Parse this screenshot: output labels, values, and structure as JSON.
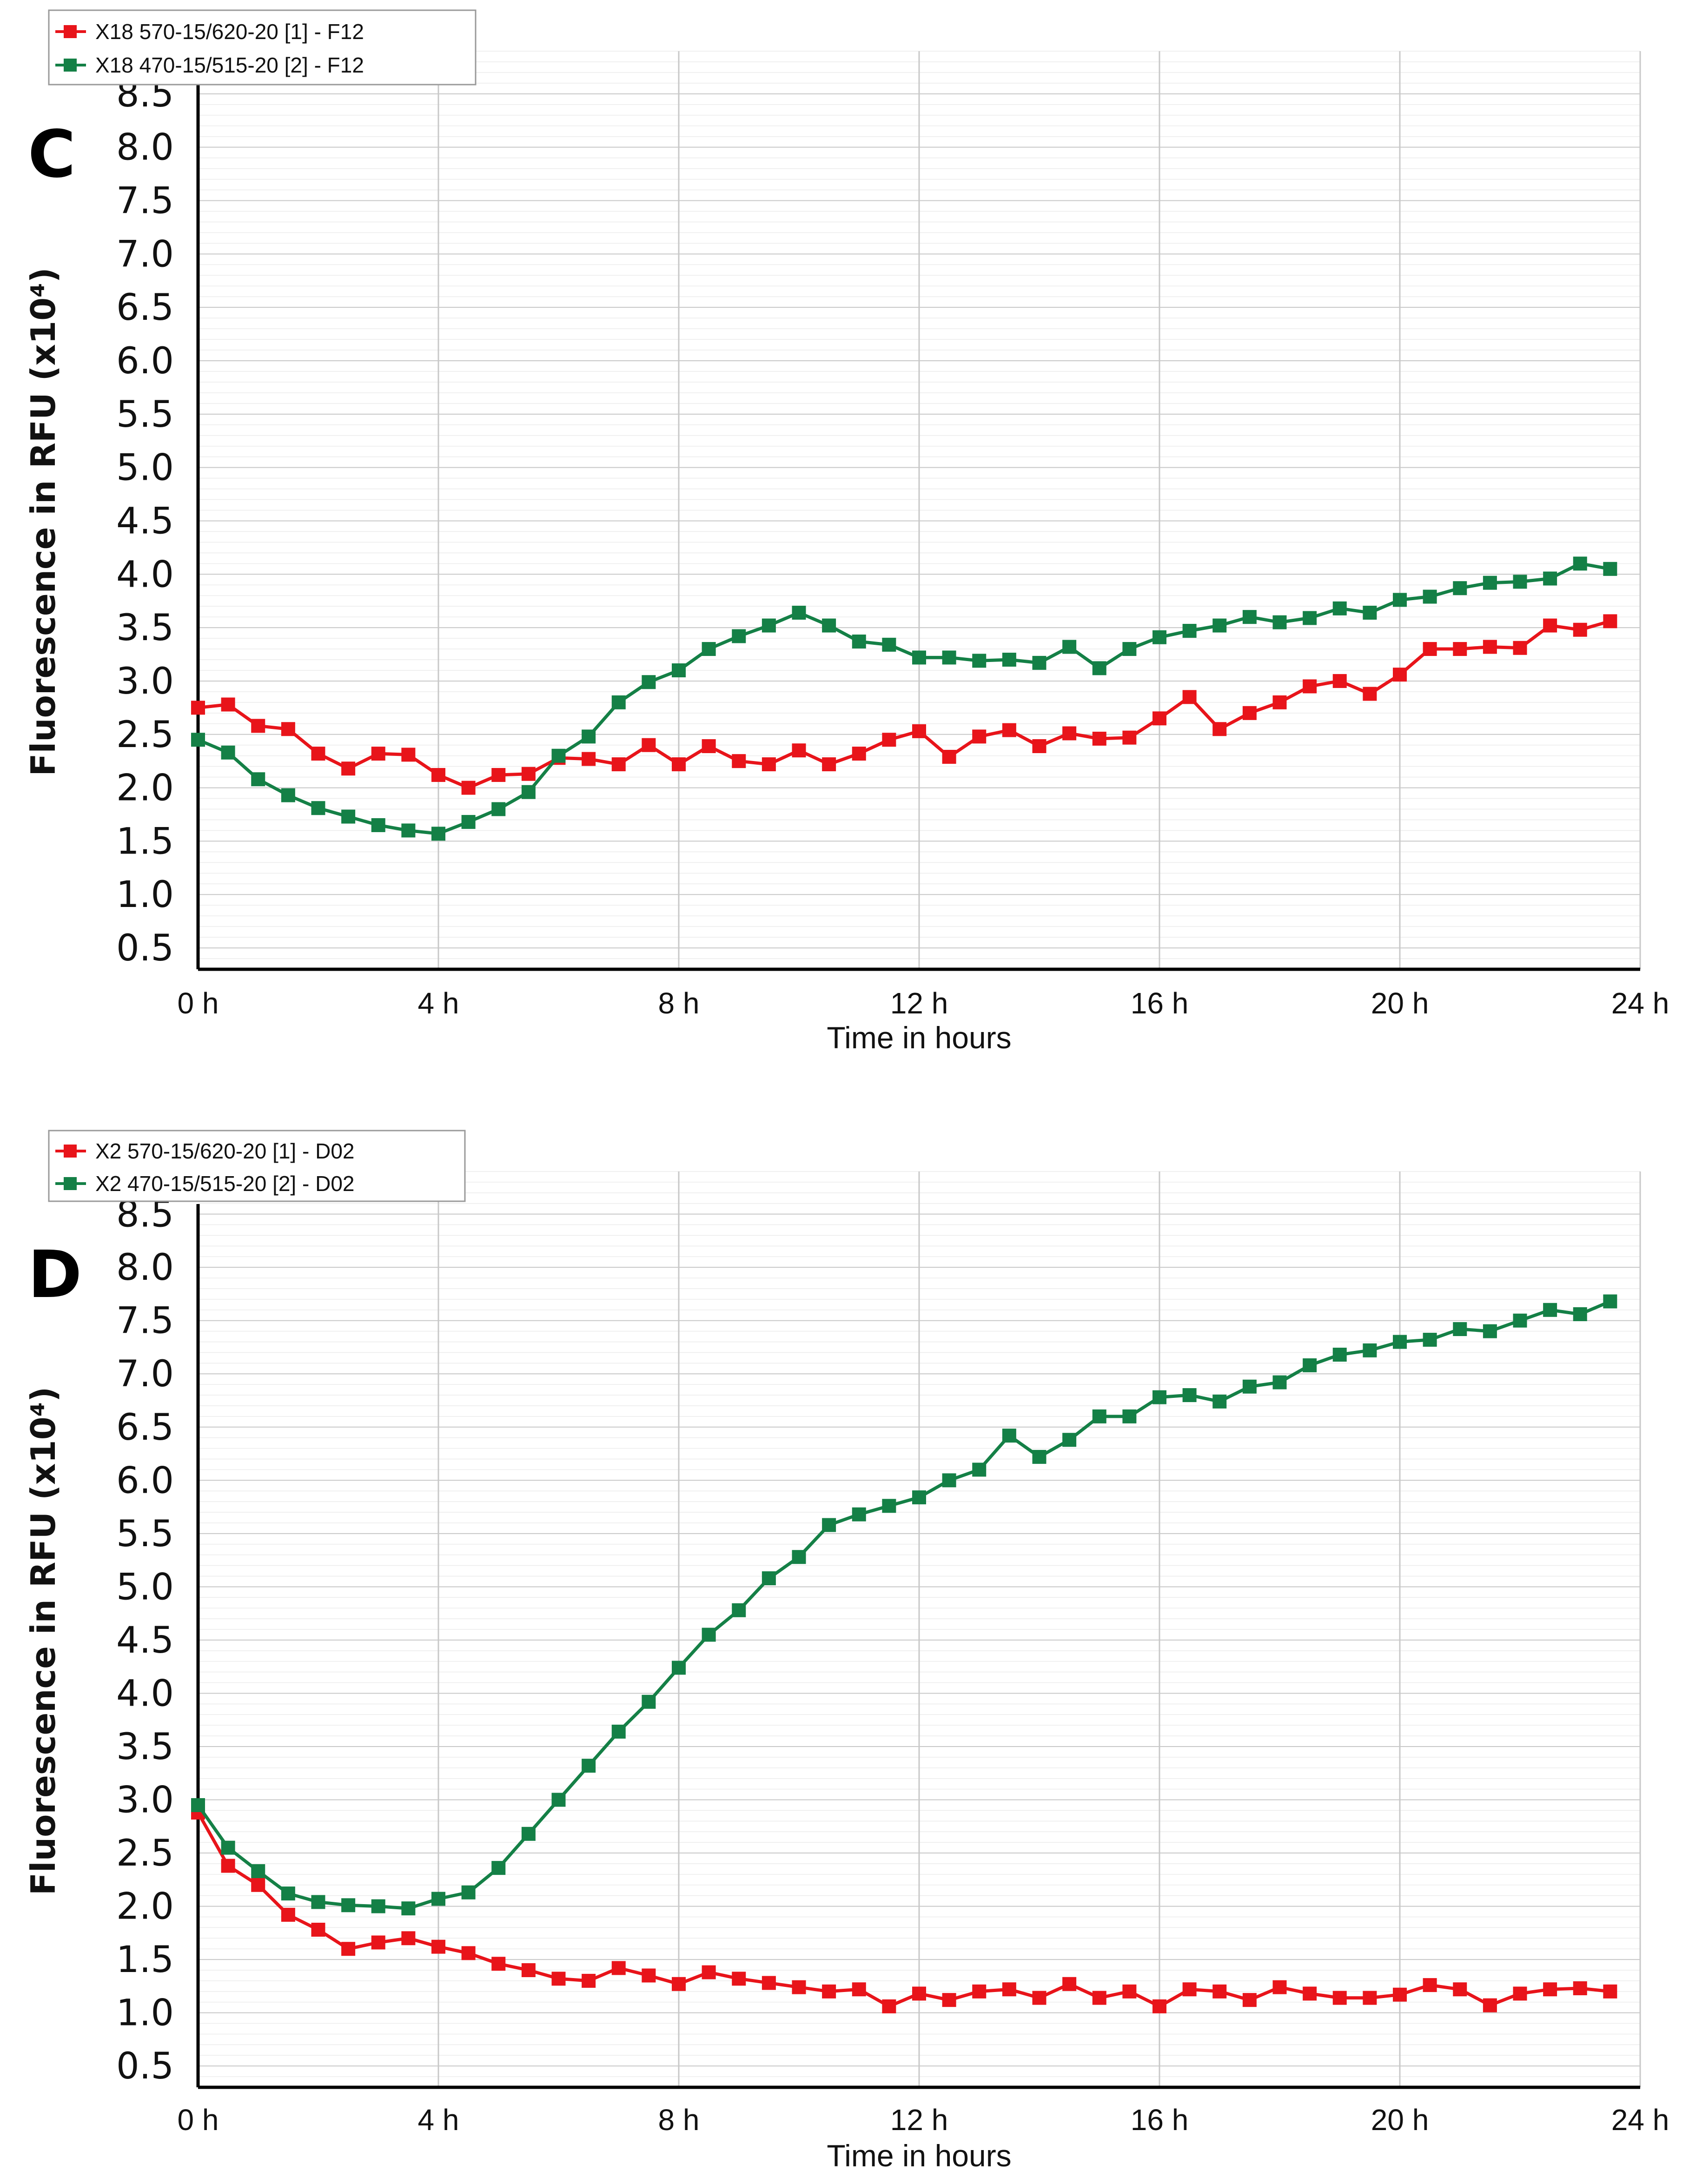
{
  "colors": {
    "red_series": "#e8141a",
    "green_series": "#148046",
    "grid_major": "#c8c8c8",
    "grid_minor": "#ececec"
  },
  "chart_data": [
    {
      "panel_label": "C",
      "type": "line",
      "title": "",
      "xlabel": "Time in hours",
      "ylabel": "Fluorescence in RFU (x10⁴)",
      "xlim": [
        0,
        24
      ],
      "ylim": [
        0.3,
        8.9
      ],
      "x_tick_values": [
        0,
        4,
        8,
        12,
        16,
        20,
        24
      ],
      "x_tick_labels": [
        "0 h",
        "4 h",
        "8 h",
        "12 h",
        "16 h",
        "20 h",
        "24 h"
      ],
      "y_tick_values": [
        0.5,
        1.0,
        1.5,
        2.0,
        2.5,
        3.0,
        3.5,
        4.0,
        4.5,
        5.0,
        5.5,
        6.0,
        6.5,
        7.0,
        7.5,
        8.0,
        8.5
      ],
      "y_tick_labels": [
        "0.5",
        "1.0",
        "1.5",
        "2.0",
        "2.5",
        "3.0",
        "3.5",
        "4.0",
        "4.5",
        "5.0",
        "5.5",
        "6.0",
        "6.5",
        "7.0",
        "7.5",
        "8.0",
        "8.5"
      ],
      "legend_position": "top-left",
      "x": [
        0,
        0.5,
        1,
        1.5,
        2,
        2.5,
        3,
        3.5,
        4,
        4.5,
        5,
        5.5,
        6,
        6.5,
        7,
        7.5,
        8,
        8.5,
        9,
        9.5,
        10,
        10.5,
        11,
        11.5,
        12,
        12.5,
        13,
        13.5,
        14,
        14.5,
        15,
        15.5,
        16,
        16.5,
        17,
        17.5,
        18,
        18.5,
        19,
        19.5,
        20,
        20.5,
        21,
        21.5,
        22,
        22.5,
        23,
        23.5
      ],
      "series": [
        {
          "name": "X18 570-15/620-20 [1] - F12",
          "color": "#e8141a",
          "values": [
            2.75,
            2.78,
            2.58,
            2.55,
            2.32,
            2.18,
            2.32,
            2.31,
            2.12,
            2.0,
            2.12,
            2.13,
            2.28,
            2.27,
            2.22,
            2.4,
            2.22,
            2.39,
            2.25,
            2.22,
            2.35,
            2.22,
            2.32,
            2.45,
            2.53,
            2.29,
            2.48,
            2.54,
            2.39,
            2.51,
            2.46,
            2.47,
            2.65,
            2.85,
            2.55,
            2.7,
            2.8,
            2.95,
            3.0,
            2.88,
            3.06,
            3.3,
            3.3,
            3.32,
            3.31,
            3.52,
            3.48,
            3.56
          ]
        },
        {
          "name": "X18 470-15/515-20 [2] - F12",
          "color": "#148046",
          "values": [
            2.45,
            2.33,
            2.08,
            1.93,
            1.81,
            1.73,
            1.65,
            1.6,
            1.57,
            1.68,
            1.8,
            1.96,
            2.3,
            2.48,
            2.8,
            2.99,
            3.1,
            3.3,
            3.42,
            3.52,
            3.64,
            3.52,
            3.37,
            3.34,
            3.22,
            3.22,
            3.19,
            3.2,
            3.17,
            3.32,
            3.12,
            3.3,
            3.41,
            3.47,
            3.52,
            3.6,
            3.55,
            3.59,
            3.68,
            3.64,
            3.76,
            3.79,
            3.87,
            3.92,
            3.93,
            3.96,
            4.1,
            4.05
          ]
        }
      ]
    },
    {
      "panel_label": "D",
      "type": "line",
      "title": "",
      "xlabel": "Time in hours",
      "ylabel": "Fluorescence in RFU (x10⁴)",
      "xlim": [
        0,
        24
      ],
      "ylim": [
        0.3,
        8.9
      ],
      "x_tick_values": [
        0,
        4,
        8,
        12,
        16,
        20,
        24
      ],
      "x_tick_labels": [
        "0 h",
        "4 h",
        "8 h",
        "12 h",
        "16 h",
        "20 h",
        "24 h"
      ],
      "y_tick_values": [
        0.5,
        1.0,
        1.5,
        2.0,
        2.5,
        3.0,
        3.5,
        4.0,
        4.5,
        5.0,
        5.5,
        6.0,
        6.5,
        7.0,
        7.5,
        8.0,
        8.5
      ],
      "y_tick_labels": [
        "0.5",
        "1.0",
        "1.5",
        "2.0",
        "2.5",
        "3.0",
        "3.5",
        "4.0",
        "4.5",
        "5.0",
        "5.5",
        "6.0",
        "6.5",
        "7.0",
        "7.5",
        "8.0",
        "8.5"
      ],
      "legend_position": "top-left",
      "x": [
        0,
        0.5,
        1,
        1.5,
        2,
        2.5,
        3,
        3.5,
        4,
        4.5,
        5,
        5.5,
        6,
        6.5,
        7,
        7.5,
        8,
        8.5,
        9,
        9.5,
        10,
        10.5,
        11,
        11.5,
        12,
        12.5,
        13,
        13.5,
        14,
        14.5,
        15,
        15.5,
        16,
        16.5,
        17,
        17.5,
        18,
        18.5,
        19,
        19.5,
        20,
        20.5,
        21,
        21.5,
        22,
        22.5,
        23,
        23.5
      ],
      "series": [
        {
          "name": "X2 570-15/620-20 [1] - D02",
          "color": "#e8141a",
          "values": [
            2.88,
            2.38,
            2.2,
            1.92,
            1.78,
            1.6,
            1.66,
            1.7,
            1.62,
            1.56,
            1.46,
            1.4,
            1.32,
            1.3,
            1.42,
            1.35,
            1.27,
            1.38,
            1.32,
            1.28,
            1.24,
            1.2,
            1.22,
            1.06,
            1.18,
            1.12,
            1.2,
            1.22,
            1.14,
            1.27,
            1.14,
            1.2,
            1.06,
            1.22,
            1.2,
            1.12,
            1.24,
            1.18,
            1.14,
            1.14,
            1.17,
            1.26,
            1.22,
            1.07,
            1.18,
            1.22,
            1.23,
            1.2
          ]
        },
        {
          "name": "X2 470-15/515-20 [2] - D02",
          "color": "#148046",
          "values": [
            2.95,
            2.55,
            2.33,
            2.12,
            2.04,
            2.01,
            2.0,
            1.98,
            2.07,
            2.13,
            2.36,
            2.68,
            3.0,
            3.32,
            3.64,
            3.92,
            4.24,
            4.55,
            4.78,
            5.08,
            5.28,
            5.58,
            5.68,
            5.76,
            5.84,
            6.0,
            6.1,
            6.42,
            6.22,
            6.38,
            6.6,
            6.6,
            6.78,
            6.8,
            6.74,
            6.88,
            6.92,
            7.08,
            7.18,
            7.22,
            7.3,
            7.32,
            7.42,
            7.4,
            7.5,
            7.6,
            7.56,
            7.68
          ]
        }
      ]
    }
  ]
}
